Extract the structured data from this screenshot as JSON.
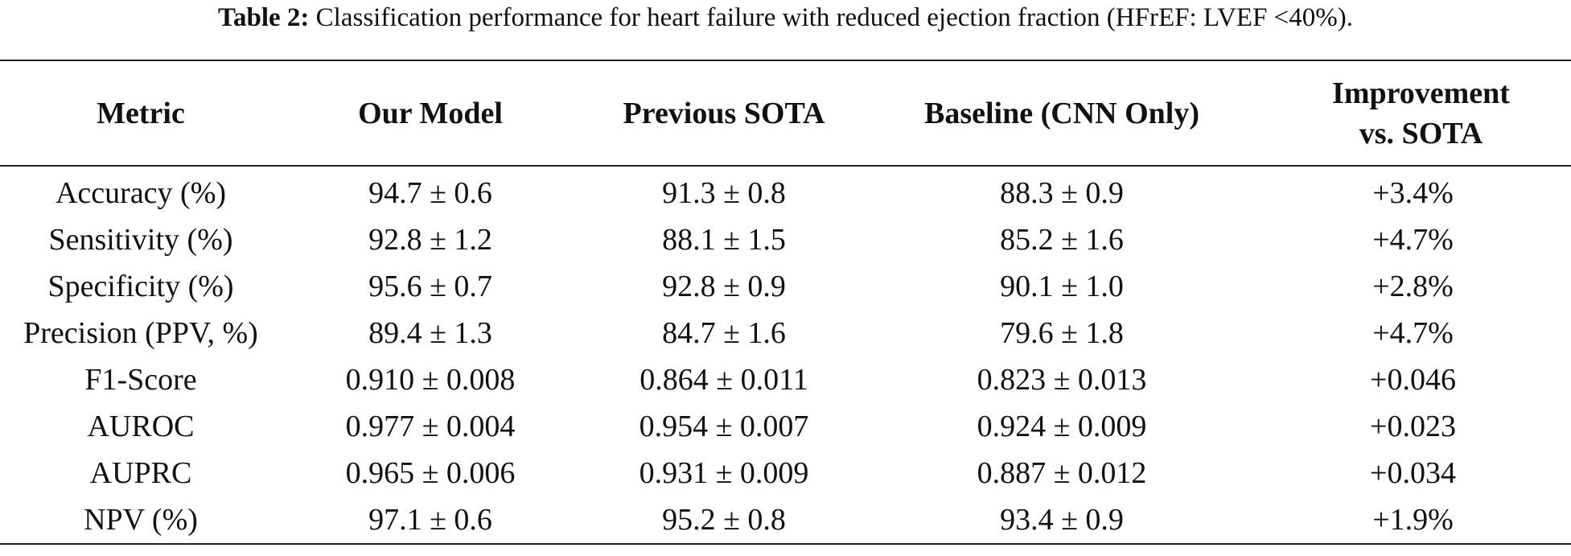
{
  "caption": {
    "label": "Table 2:",
    "text": "Classification performance for heart failure with reduced ejection fraction (HFrEF: LVEF <40%)."
  },
  "table": {
    "headers": [
      {
        "line1": "Metric",
        "line2": ""
      },
      {
        "line1": "Our Model",
        "line2": ""
      },
      {
        "line1": "Previous SOTA",
        "line2": ""
      },
      {
        "line1": "Baseline (CNN Only)",
        "line2": ""
      },
      {
        "line1": "Improvement",
        "line2": "vs. SOTA"
      }
    ],
    "rows": [
      [
        "Accuracy (%)",
        "94.7 ± 0.6",
        "91.3 ± 0.8",
        "88.3 ± 0.9",
        "+3.4%"
      ],
      [
        "Sensitivity (%)",
        "92.8 ± 1.2",
        "88.1 ± 1.5",
        "85.2 ± 1.6",
        "+4.7%"
      ],
      [
        "Specificity (%)",
        "95.6 ± 0.7",
        "92.8 ± 0.9",
        "90.1 ± 1.0",
        "+2.8%"
      ],
      [
        "Precision (PPV, %)",
        "89.4 ± 1.3",
        "84.7 ± 1.6",
        "79.6 ± 1.8",
        "+4.7%"
      ],
      [
        "F1-Score",
        "0.910 ± 0.008",
        "0.864 ± 0.011",
        "0.823 ± 0.013",
        "+0.046"
      ],
      [
        "AUROC",
        "0.977 ± 0.004",
        "0.954 ± 0.007",
        "0.924 ± 0.009",
        "+0.023"
      ],
      [
        "AUPRC",
        "0.965 ± 0.006",
        "0.931 ± 0.009",
        "0.887 ± 0.012",
        "+0.034"
      ],
      [
        "NPV (%)",
        "97.1 ± 0.6",
        "95.2 ± 0.8",
        "93.4 ± 0.9",
        "+1.9%"
      ]
    ]
  }
}
